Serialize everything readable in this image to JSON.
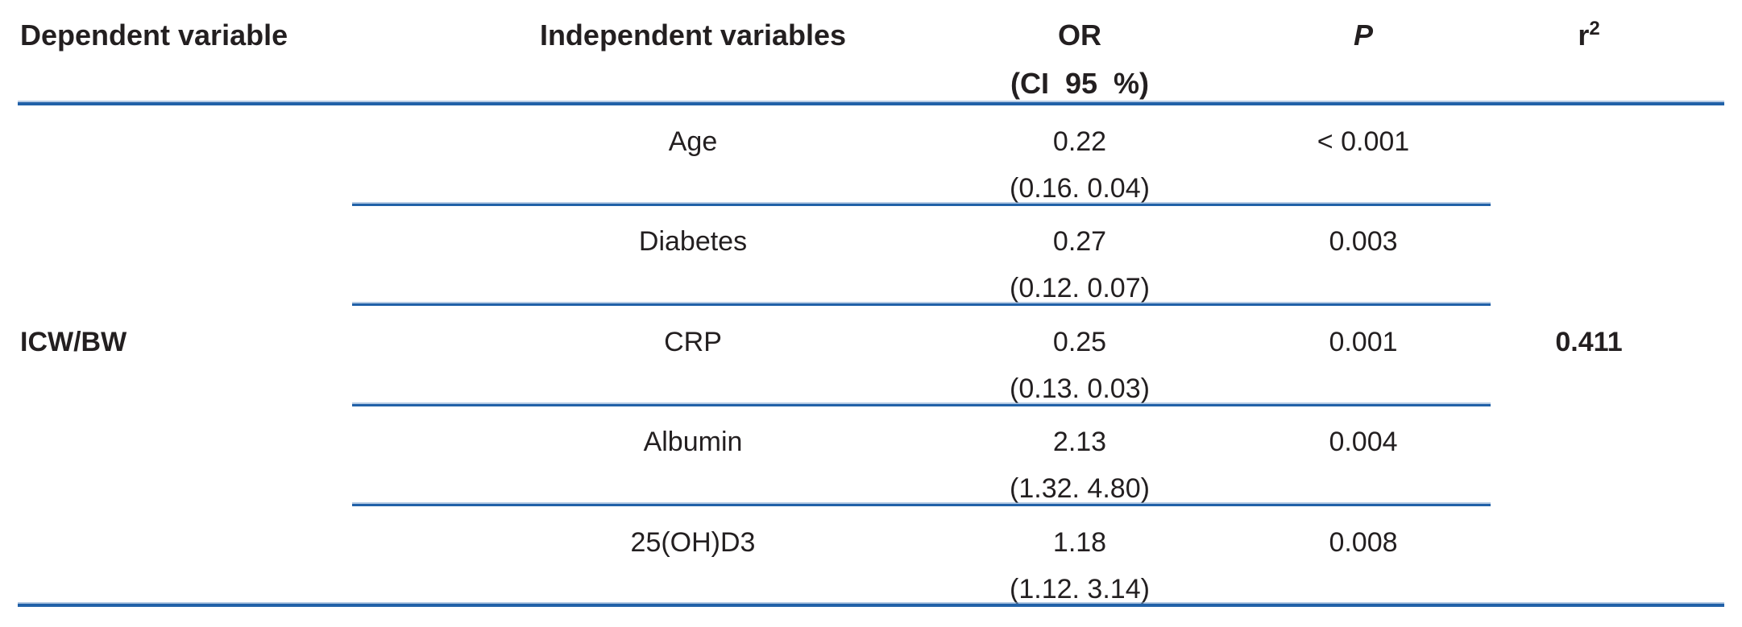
{
  "table": {
    "headers": {
      "dependent_variable": "Dependent variable",
      "independent_variables": "Independent variables",
      "or_line1": "OR",
      "or_line2": "(CI 95 %)",
      "p": "P",
      "r2_base": "r",
      "r2_sup": "2"
    },
    "dependent_variable": "ICW/BW",
    "r2_value": "0.411",
    "rows": [
      {
        "independent_variable": "Age",
        "or": "0.22",
        "ci": "(0.16. 0.04)",
        "p": "< 0.001"
      },
      {
        "independent_variable": "Diabetes",
        "or": "0.27",
        "ci": "(0.12. 0.07)",
        "p": "0.003"
      },
      {
        "independent_variable": "CRP",
        "or": "0.25",
        "ci": "(0.13. 0.03)",
        "p": "0.001"
      },
      {
        "independent_variable": "Albumin",
        "or": "2.13",
        "ci": "(1.32. 4.80)",
        "p": "0.004"
      },
      {
        "independent_variable": "25(OH)D3",
        "or": "1.18",
        "ci": "(1.12. 3.14)",
        "p": "0.008"
      }
    ],
    "colors": {
      "rule_blue": "#2161a8",
      "text": "#231f20"
    }
  }
}
